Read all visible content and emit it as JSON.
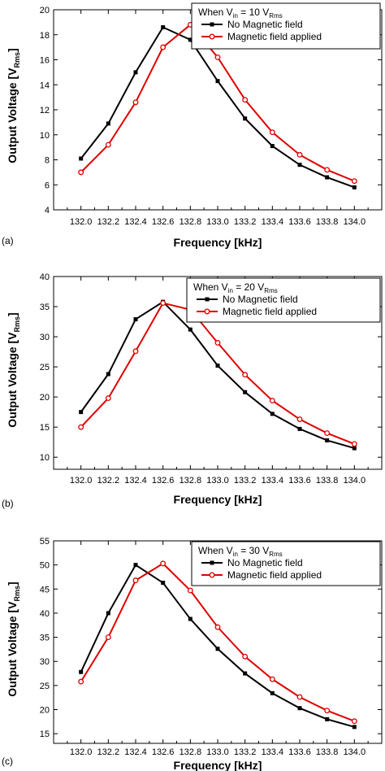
{
  "chart_data": [
    {
      "type": "line",
      "panel_label": "(a)",
      "xlabel": "Frequency [kHz]",
      "ylabel_main": "Output Voltage [V",
      "ylabel_sub": "Rms",
      "ylabel_end": "]",
      "xlim": [
        131.8,
        134.2
      ],
      "ylim": [
        4,
        20
      ],
      "xticks": [
        "132.0",
        "132.2",
        "132.4",
        "132.6",
        "132.8",
        "133.0",
        "133.2",
        "133.4",
        "133.6",
        "133.8",
        "134.0"
      ],
      "yticks": [
        "4",
        "6",
        "8",
        "10",
        "12",
        "14",
        "16",
        "18",
        "20"
      ],
      "legend": {
        "placement": "top-right",
        "header_pre": "When V",
        "header_sub1": "in",
        "header_mid": " = 10 V",
        "header_sub2": "Rms"
      },
      "series": [
        {
          "name": "No Magnetic field",
          "color": "#000000",
          "marker": "filled-square",
          "x": [
            132.0,
            132.2,
            132.4,
            132.6,
            132.8,
            133.0,
            133.2,
            133.4,
            133.6,
            133.8,
            134.0
          ],
          "y": [
            8.1,
            10.9,
            15.0,
            18.6,
            17.6,
            14.3,
            11.3,
            9.1,
            7.6,
            6.6,
            5.8
          ]
        },
        {
          "name": "Magnetic field applied",
          "color": "#e00000",
          "marker": "open-circle",
          "x": [
            132.0,
            132.2,
            132.4,
            132.6,
            132.8,
            133.0,
            133.2,
            133.4,
            133.6,
            133.8,
            134.0
          ],
          "y": [
            7.0,
            9.2,
            12.6,
            17.0,
            18.8,
            16.2,
            12.8,
            10.2,
            8.4,
            7.2,
            6.3
          ]
        }
      ]
    },
    {
      "type": "line",
      "panel_label": "(b)",
      "xlabel": "Frequency [kHz]",
      "ylabel_main": "Output Voltage [V",
      "ylabel_sub": "Rms",
      "ylabel_end": "]",
      "xlim": [
        131.8,
        134.2
      ],
      "ylim": [
        8,
        40
      ],
      "xticks": [
        "132.0",
        "132.2",
        "132.4",
        "132.6",
        "132.8",
        "133.0",
        "133.2",
        "133.4",
        "133.6",
        "133.8",
        "134.0"
      ],
      "yticks": [
        "10",
        "15",
        "20",
        "25",
        "30",
        "35",
        "40"
      ],
      "legend": {
        "placement": "top-right",
        "header_pre": "When V",
        "header_sub1": "in",
        "header_mid": " = 20 V",
        "header_sub2": "Rms"
      },
      "series": [
        {
          "name": "No Magnetic field",
          "color": "#000000",
          "marker": "filled-square",
          "x": [
            132.0,
            132.2,
            132.4,
            132.6,
            132.8,
            133.0,
            133.2,
            133.4,
            133.6,
            133.8,
            134.0
          ],
          "y": [
            17.5,
            23.8,
            32.9,
            35.8,
            31.2,
            25.2,
            20.8,
            17.2,
            14.7,
            12.8,
            11.5
          ]
        },
        {
          "name": "Magnetic field applied",
          "color": "#e00000",
          "marker": "open-circle",
          "x": [
            132.0,
            132.2,
            132.4,
            132.6,
            132.8,
            133.0,
            133.2,
            133.4,
            133.6,
            133.8,
            134.0
          ],
          "y": [
            15.0,
            19.8,
            27.6,
            35.6,
            34.5,
            29.0,
            23.7,
            19.4,
            16.3,
            14.0,
            12.2
          ]
        }
      ]
    },
    {
      "type": "line",
      "panel_label": "(c)",
      "xlabel": "Frequency [kHz]",
      "ylabel_main": "Output Voltage [V",
      "ylabel_sub": "Rms",
      "ylabel_end": "]",
      "xlim": [
        131.8,
        134.2
      ],
      "ylim": [
        13,
        55
      ],
      "xticks": [
        "132.0",
        "132.2",
        "132.4",
        "132.6",
        "132.8",
        "133.0",
        "133.2",
        "133.4",
        "133.6",
        "133.8",
        "134.0"
      ],
      "yticks": [
        "15",
        "20",
        "25",
        "30",
        "35",
        "40",
        "45",
        "50",
        "55"
      ],
      "legend": {
        "placement": "top-right",
        "header_pre": "When V",
        "header_sub1": "in",
        "header_mid": " = 30 V",
        "header_sub2": "Rms"
      },
      "series": [
        {
          "name": "No Magnetic field",
          "color": "#000000",
          "marker": "filled-square",
          "x": [
            132.0,
            132.2,
            132.4,
            132.6,
            132.8,
            133.0,
            133.2,
            133.4,
            133.6,
            133.8,
            134.0
          ],
          "y": [
            27.8,
            40.0,
            50.0,
            46.3,
            38.8,
            32.6,
            27.5,
            23.4,
            20.3,
            18.0,
            16.4
          ]
        },
        {
          "name": "Magnetic field applied",
          "color": "#e00000",
          "marker": "open-circle",
          "x": [
            132.0,
            132.2,
            132.4,
            132.6,
            132.8,
            133.0,
            133.2,
            133.4,
            133.6,
            133.8,
            134.0
          ],
          "y": [
            25.8,
            35.0,
            46.8,
            50.3,
            44.7,
            37.1,
            31.0,
            26.3,
            22.6,
            19.8,
            17.6
          ]
        }
      ]
    }
  ]
}
